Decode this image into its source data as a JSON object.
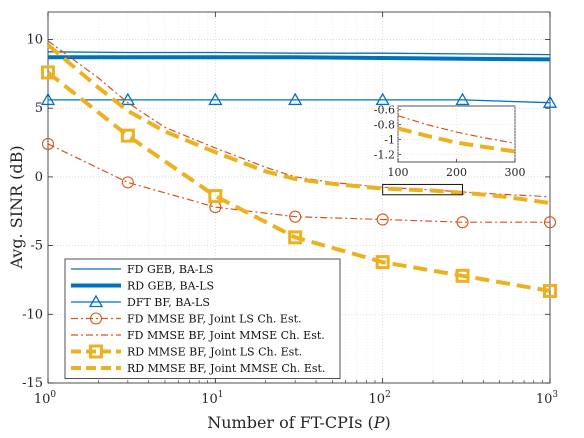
{
  "chart_data": {
    "type": "line",
    "xlabel": "Number of FT-CPIs (P)",
    "ylabel": "Avg. SINR (dB)",
    "x_scale": "log",
    "xlim": [
      1,
      1000
    ],
    "ylim": [
      -15,
      12
    ],
    "x_ticks": [
      1,
      10,
      100,
      1000
    ],
    "x_tick_labels": [
      "10^0",
      "10^1",
      "10^2",
      "10^3"
    ],
    "y_ticks": [
      -15,
      -10,
      -5,
      0,
      5,
      10
    ],
    "grid": true,
    "legend_position": "bottom-left",
    "series": [
      {
        "name": "FD GEB, BA-LS",
        "color": "#0072BD",
        "linewidth": 1.3,
        "dash": "solid",
        "marker": "none",
        "x": [
          1,
          3,
          10,
          30,
          100,
          300,
          1000
        ],
        "y": [
          9.1,
          9.05,
          9.05,
          9.0,
          9.0,
          8.95,
          8.9
        ]
      },
      {
        "name": "RD GEB, BA-LS",
        "color": "#0072BD",
        "linewidth": 4,
        "dash": "solid",
        "marker": "none",
        "x": [
          1,
          3,
          10,
          30,
          100,
          300,
          1000
        ],
        "y": [
          8.7,
          8.7,
          8.7,
          8.7,
          8.65,
          8.6,
          8.55
        ]
      },
      {
        "name": "DFT BF, BA-LS",
        "color": "#0072BD",
        "linewidth": 1.3,
        "dash": "solid",
        "marker": "triangle",
        "x": [
          1,
          3,
          10,
          30,
          100,
          300,
          1000
        ],
        "y": [
          5.6,
          5.6,
          5.6,
          5.6,
          5.6,
          5.6,
          5.4
        ]
      },
      {
        "name": "FD MMSE BF, Joint LS Ch. Est.",
        "color": "#D95319",
        "linewidth": 1.2,
        "dash": "dashdot",
        "marker": "circle",
        "x": [
          1,
          3,
          10,
          30,
          100,
          300,
          1000
        ],
        "y": [
          2.4,
          -0.4,
          -2.2,
          -2.9,
          -3.1,
          -3.3,
          -3.3
        ]
      },
      {
        "name": "FD MMSE BF, Joint MMSE Ch. Est.",
        "color": "#D95319",
        "linewidth": 1.2,
        "dash": "dashdot",
        "marker": "none",
        "x": [
          1,
          2,
          3,
          5,
          10,
          20,
          30,
          50,
          100,
          200,
          300,
          500,
          1000
        ],
        "y": [
          9.9,
          7.2,
          5.4,
          3.6,
          2.1,
          0.7,
          0.0,
          -0.4,
          -0.75,
          -0.95,
          -1.1,
          -1.25,
          -1.45
        ]
      },
      {
        "name": "RD MMSE BF, Joint LS Ch. Est.",
        "color": "#EDB120",
        "linewidth": 4,
        "dash": "dashed",
        "marker": "square",
        "x": [
          1,
          3,
          10,
          30,
          100,
          300,
          1000
        ],
        "y": [
          7.6,
          3.0,
          -1.4,
          -4.4,
          -6.2,
          -7.2,
          -8.3
        ]
      },
      {
        "name": "RD MMSE BF, Joint MMSE Ch. Est.",
        "color": "#EDB120",
        "linewidth": 4,
        "dash": "dashed",
        "marker": "none",
        "x": [
          1,
          2,
          3,
          5,
          10,
          20,
          30,
          50,
          100,
          200,
          300,
          500,
          1000
        ],
        "y": [
          9.6,
          6.5,
          4.8,
          3.3,
          1.8,
          0.4,
          -0.15,
          -0.5,
          -0.85,
          -1.0,
          -1.15,
          -1.4,
          -1.9
        ]
      }
    ],
    "inset": {
      "xlim": [
        100,
        300
      ],
      "ylim": [
        -1.3,
        -0.55
      ],
      "x_ticks": [
        100,
        200,
        300
      ],
      "y_ticks": [
        -0.6,
        -0.8,
        -1,
        -1.2
      ],
      "x_tick_labels": [
        "100",
        "200",
        "300"
      ],
      "y_tick_labels": [
        "-0.6",
        "-0.8",
        "-1",
        "-1.2"
      ],
      "series": [
        {
          "name": "FD MMSE BF, Joint MMSE Ch. Est.",
          "x": [
            100,
            150,
            200,
            250,
            300
          ],
          "y": [
            -0.68,
            -0.8,
            -0.9,
            -0.98,
            -1.05
          ]
        },
        {
          "name": "RD MMSE BF, Joint MMSE Ch. Est.",
          "x": [
            100,
            150,
            200,
            250,
            300
          ],
          "y": [
            -0.85,
            -0.95,
            -1.04,
            -1.1,
            -1.16
          ]
        }
      ]
    }
  }
}
